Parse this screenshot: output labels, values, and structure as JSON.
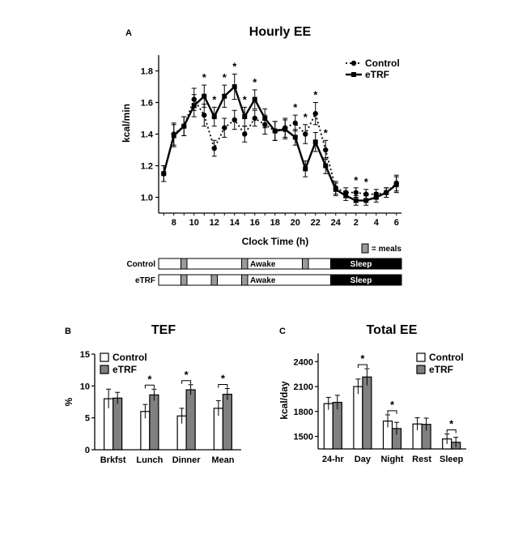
{
  "figure": {
    "panel_a": {
      "letter": "A",
      "meals_legend": "= meals",
      "schedule": [
        {
          "label": "Control",
          "awake": "Awake",
          "sleep": "Sleep",
          "meal_hours": [
            9,
            15,
            21
          ]
        },
        {
          "label": "eTRF",
          "awake": "Awake",
          "sleep": "Sleep",
          "meal_hours": [
            9,
            12,
            15
          ]
        }
      ]
    },
    "panel_b": {
      "letter": "B"
    },
    "panel_c": {
      "letter": "C"
    }
  },
  "chart_data": [
    {
      "type": "line",
      "title": "Hourly EE",
      "xlabel": "Clock Time (h)",
      "ylabel": "kcal/min",
      "x_ticks": [
        "8",
        "10",
        "12",
        "14",
        "16",
        "18",
        "20",
        "22",
        "24",
        "2",
        "4",
        "6"
      ],
      "ylim": [
        0.9,
        1.9
      ],
      "y_ticks": [
        1.0,
        1.2,
        1.4,
        1.6,
        1.8
      ],
      "legend_position": "top-right",
      "x": [
        7,
        8,
        9,
        10,
        11,
        12,
        13,
        14,
        15,
        16,
        17,
        18,
        19,
        20,
        21,
        22,
        23,
        24,
        25,
        26,
        27,
        28,
        29,
        30
      ],
      "series": [
        {
          "name": "Control",
          "style": "dotted-circle",
          "values": [
            1.15,
            1.4,
            1.45,
            1.62,
            1.52,
            1.31,
            1.44,
            1.49,
            1.4,
            1.5,
            1.46,
            1.42,
            1.44,
            1.47,
            1.4,
            1.53,
            1.3,
            1.06,
            1.03,
            1.03,
            1.02,
            1.02,
            1.03,
            1.09
          ],
          "errors": [
            0.05,
            0.07,
            0.06,
            0.07,
            0.07,
            0.05,
            0.06,
            0.06,
            0.05,
            0.05,
            0.06,
            0.06,
            0.06,
            0.05,
            0.06,
            0.07,
            0.06,
            0.04,
            0.03,
            0.03,
            0.03,
            0.03,
            0.03,
            0.05
          ]
        },
        {
          "name": "eTRF",
          "style": "solid-square",
          "values": [
            1.15,
            1.39,
            1.45,
            1.58,
            1.64,
            1.51,
            1.64,
            1.7,
            1.51,
            1.62,
            1.5,
            1.42,
            1.43,
            1.38,
            1.18,
            1.35,
            1.2,
            1.05,
            1.01,
            0.98,
            0.98,
            1.0,
            1.03,
            1.08
          ],
          "errors": [
            0.05,
            0.07,
            0.06,
            0.07,
            0.07,
            0.06,
            0.07,
            0.08,
            0.06,
            0.06,
            0.06,
            0.06,
            0.06,
            0.05,
            0.05,
            0.06,
            0.05,
            0.04,
            0.03,
            0.03,
            0.03,
            0.03,
            0.03,
            0.05
          ]
        }
      ],
      "significance": [
        {
          "x": 11,
          "mark": "*"
        },
        {
          "x": 12,
          "mark": "*"
        },
        {
          "x": 13,
          "mark": "*"
        },
        {
          "x": 14,
          "mark": "*"
        },
        {
          "x": 15,
          "mark": "*"
        },
        {
          "x": 16,
          "mark": "*"
        },
        {
          "x": 20,
          "mark": "*"
        },
        {
          "x": 21,
          "mark": "*"
        },
        {
          "x": 22,
          "mark": "*"
        },
        {
          "x": 23,
          "mark": "*"
        },
        {
          "x": 26,
          "mark": "*"
        },
        {
          "x": 27,
          "mark": "*"
        }
      ]
    },
    {
      "type": "bar",
      "title": "TEF",
      "ylabel": "%",
      "ylim": [
        0,
        15
      ],
      "y_ticks": [
        0,
        5,
        10,
        15
      ],
      "categories": [
        "Brkfst",
        "Lunch",
        "Dinner",
        "Mean"
      ],
      "legend_position": "top-left",
      "series": [
        {
          "name": "Control",
          "color": "#ffffff",
          "values": [
            8.0,
            6.0,
            5.3,
            6.5
          ],
          "errors": [
            1.5,
            1.1,
            1.2,
            1.2
          ]
        },
        {
          "name": "eTRF",
          "color": "#808080",
          "values": [
            8.1,
            8.6,
            9.4,
            8.7
          ],
          "errors": [
            0.9,
            0.9,
            0.8,
            0.9
          ]
        }
      ],
      "significance": [
        "",
        "*",
        "*",
        "*"
      ]
    },
    {
      "type": "bar",
      "title": "Total EE",
      "ylabel": "kcal/day",
      "ylim": [
        1350,
        2500
      ],
      "y_ticks": [
        1500,
        1800,
        2100,
        2400
      ],
      "categories": [
        "24-hr",
        "Day",
        "Night",
        "Rest",
        "Sleep"
      ],
      "legend_position": "top-right",
      "series": [
        {
          "name": "Control",
          "color": "#ffffff",
          "values": [
            1895,
            2100,
            1685,
            1650,
            1470
          ],
          "errors": [
            75,
            90,
            75,
            75,
            60
          ]
        },
        {
          "name": "eTRF",
          "color": "#808080",
          "values": [
            1910,
            2215,
            1595,
            1645,
            1430
          ],
          "errors": [
            85,
            100,
            75,
            75,
            60
          ]
        }
      ],
      "significance": [
        "",
        "*",
        "*",
        "",
        "*"
      ]
    }
  ]
}
